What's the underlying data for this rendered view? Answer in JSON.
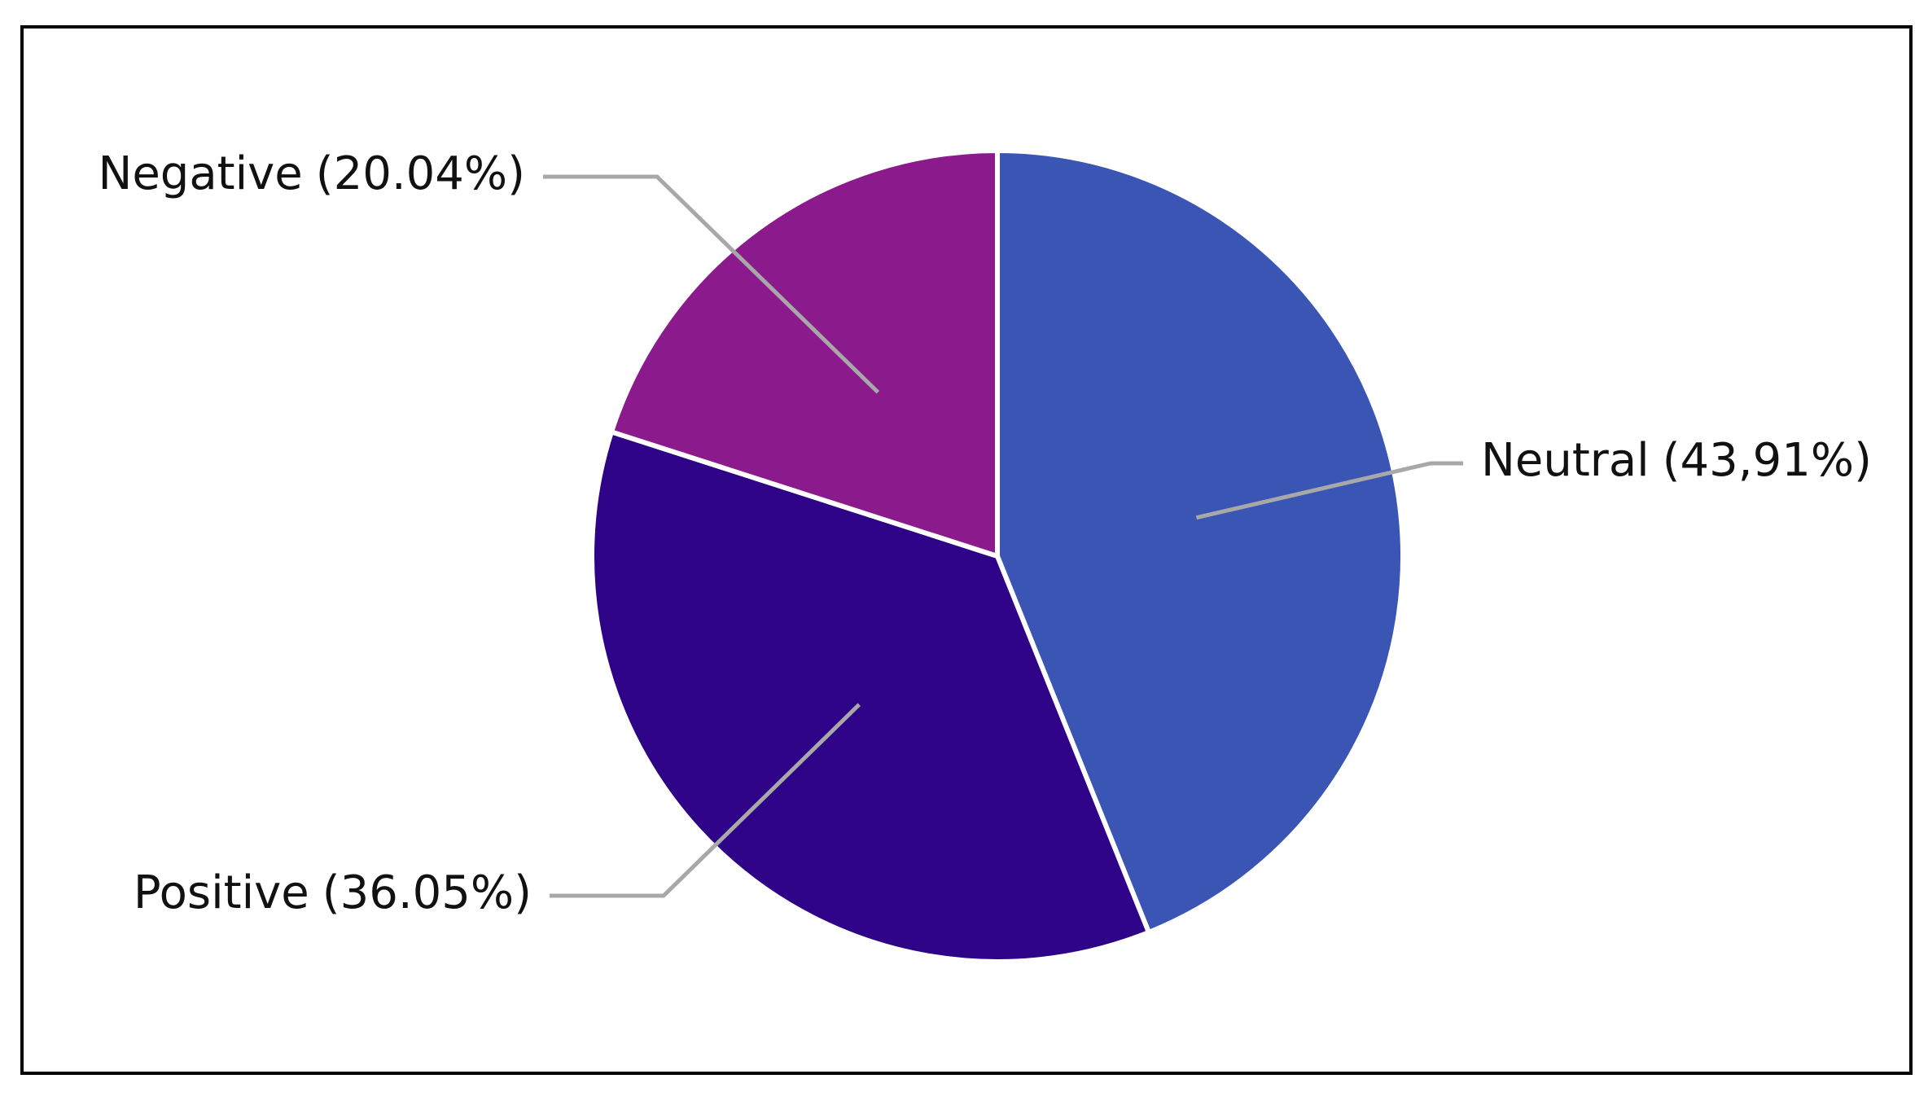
{
  "chart_data": {
    "type": "pie",
    "categories": [
      "Neutral",
      "Positive",
      "Negative"
    ],
    "values": [
      43.91,
      36.05,
      20.04
    ],
    "value_labels": [
      "(43,91%)",
      "(36.05%)",
      "(20.04%)"
    ],
    "colors": [
      "#3a55b4",
      "#2e0387",
      "#8b1a8c"
    ]
  }
}
